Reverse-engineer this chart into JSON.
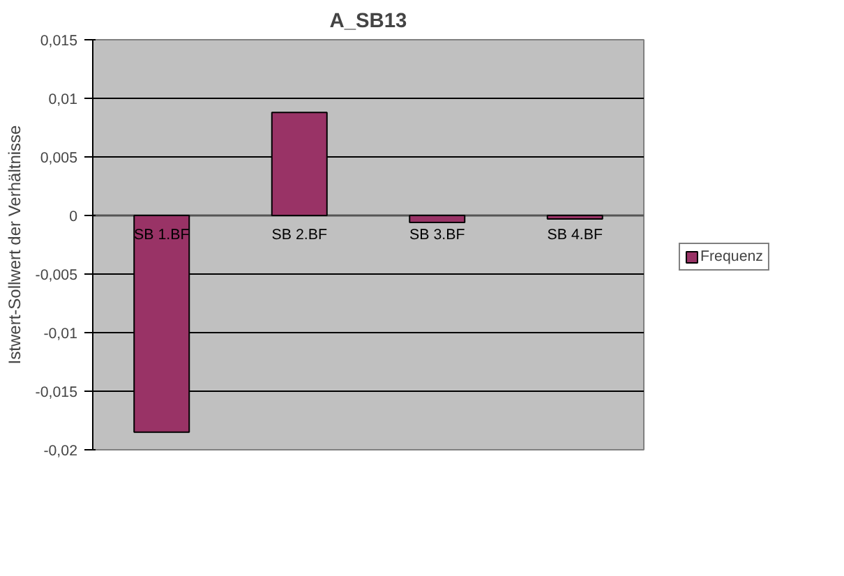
{
  "chart_data": {
    "type": "bar",
    "title": "A_SB13",
    "ylabel": "Istwert-Sollwert der Verhältnisse",
    "categories": [
      "SB 1.BF",
      "SB 2.BF",
      "SB 3.BF",
      "SB 4.BF"
    ],
    "series": [
      {
        "name": "Frequenz",
        "color": "#993366",
        "values": [
          -0.0185,
          0.0088,
          -0.0006,
          -0.0003
        ]
      }
    ],
    "ylim": [
      -0.02,
      0.015
    ],
    "yticks": [
      {
        "value": -0.02,
        "label": "-0,02"
      },
      {
        "value": -0.015,
        "label": "-0,015"
      },
      {
        "value": -0.01,
        "label": "-0,01"
      },
      {
        "value": -0.005,
        "label": "-0,005"
      },
      0,
      {
        "value": 0.005,
        "label": "0,005"
      },
      {
        "value": 0.01,
        "label": "0,01"
      },
      {
        "value": 0.015,
        "label": "0,015"
      }
    ],
    "grid": "y",
    "legend": "right"
  }
}
